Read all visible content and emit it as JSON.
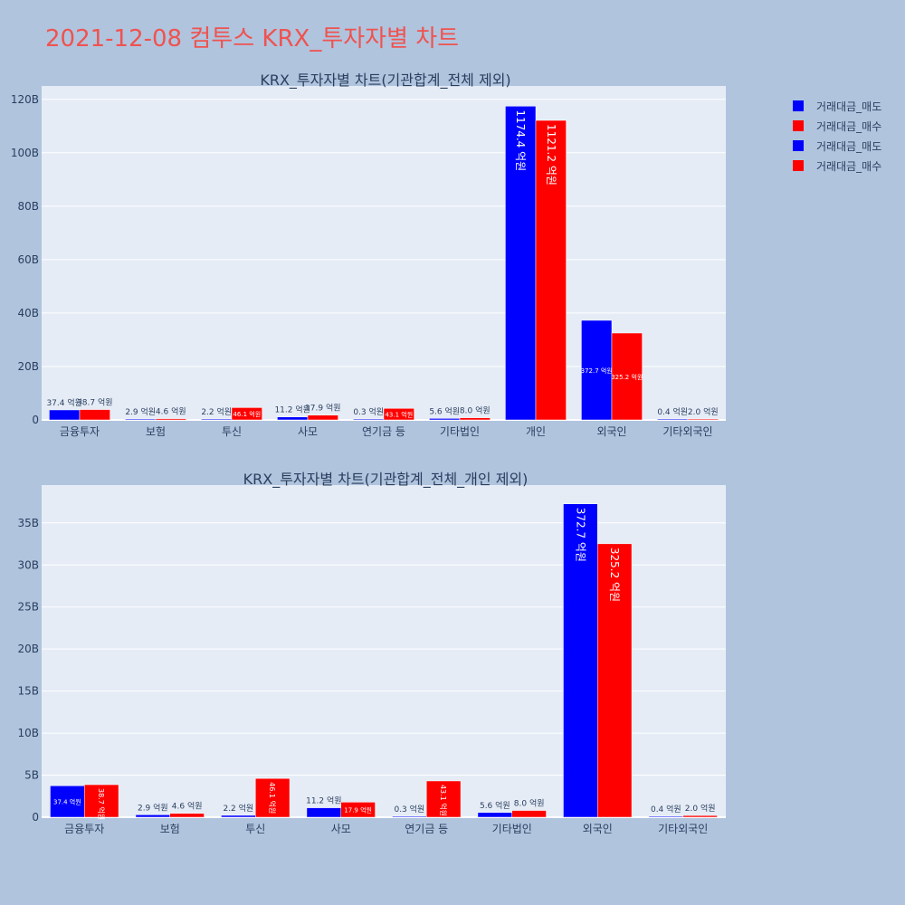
{
  "page_title": "2021-12-08 컴투스 KRX_투자자별 차트",
  "colors": {
    "sell": "#0000ff",
    "buy": "#ff0000",
    "title": "#ef5350",
    "plot_bg": "#e5ecf6",
    "page_bg": "#b0c4de",
    "text": "#2a3f5f"
  },
  "legend": [
    {
      "label": "거래대금_매도",
      "color": "#0000ff"
    },
    {
      "label": "거래대금_매수",
      "color": "#ff0000"
    },
    {
      "label": "거래대금_매도",
      "color": "#0000ff"
    },
    {
      "label": "거래대금_매수",
      "color": "#ff0000"
    }
  ],
  "chart_data": [
    {
      "type": "bar",
      "title": "KRX_투자자별 차트(기관합계_전체 제외)",
      "categories": [
        "금융투자",
        "보험",
        "투신",
        "사모",
        "연기금 등",
        "기타법인",
        "개인",
        "외국인",
        "기타외국인"
      ],
      "series": [
        {
          "name": "거래대금_매도",
          "color": "#0000ff",
          "values": [
            3.74,
            0.29,
            0.22,
            1.12,
            0.03,
            0.56,
            117.44,
            37.27,
            0.04
          ],
          "labels": [
            "37.4 억원",
            "2.9 억원",
            "2.2 억원",
            "11.2 억원",
            "0.3 억원",
            "5.6 억원",
            "1174.4 억원",
            "372.7 억원",
            "0.4 억원"
          ]
        },
        {
          "name": "거래대금_매수",
          "color": "#ff0000",
          "values": [
            3.87,
            0.46,
            4.61,
            1.79,
            4.31,
            0.8,
            112.12,
            32.52,
            0.2
          ],
          "labels": [
            "38.7 억원",
            "4.6 억원",
            "46.1 억원",
            "17.9 억원",
            "43.1 억원",
            "8.0 억원",
            "1121.2 억원",
            "325.2 억원",
            "2.0 억원"
          ]
        }
      ],
      "ylim": [
        0,
        125
      ],
      "yticks": [
        0,
        20,
        40,
        60,
        80,
        100,
        120
      ],
      "ytick_labels": [
        "0",
        "20B",
        "40B",
        "60B",
        "80B",
        "100B",
        "120B"
      ],
      "grid": true
    },
    {
      "type": "bar",
      "title": "KRX_투자자별 차트(기관합계_전체_개인 제외)",
      "categories": [
        "금융투자",
        "보험",
        "투신",
        "사모",
        "연기금 등",
        "기타법인",
        "외국인",
        "기타외국인"
      ],
      "series": [
        {
          "name": "거래대금_매도",
          "color": "#0000ff",
          "values": [
            3.74,
            0.29,
            0.22,
            1.12,
            0.03,
            0.56,
            37.27,
            0.04
          ],
          "labels": [
            "37.4 억원",
            "2.9 억원",
            "2.2 억원",
            "11.2 억원",
            "0.3 억원",
            "5.6 억원",
            "372.7 억원",
            "0.4 억원"
          ]
        },
        {
          "name": "거래대금_매수",
          "color": "#ff0000",
          "values": [
            3.87,
            0.46,
            4.61,
            1.79,
            4.31,
            0.8,
            32.52,
            0.2
          ],
          "labels": [
            "38.7 억원",
            "4.6 억원",
            "46.1 억원",
            "17.9 억원",
            "43.1 억원",
            "8.0 억원",
            "325.2 억원",
            "2.0 억원"
          ]
        }
      ],
      "ylim": [
        0,
        39.5
      ],
      "yticks": [
        0,
        5,
        10,
        15,
        20,
        25,
        30,
        35
      ],
      "ytick_labels": [
        "0",
        "5B",
        "10B",
        "15B",
        "20B",
        "25B",
        "30B",
        "35B"
      ],
      "grid": true
    }
  ]
}
